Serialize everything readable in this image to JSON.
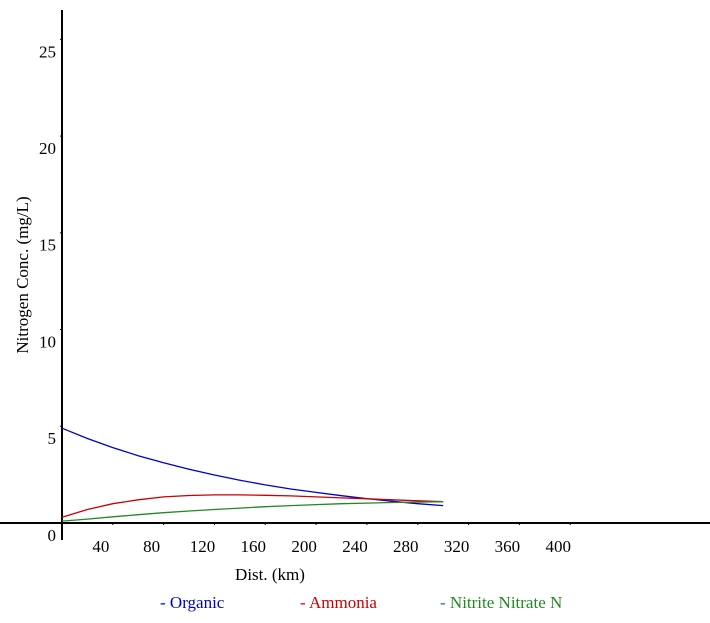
{
  "chart_data": {
    "type": "line",
    "x_label": "Dist. (km)",
    "y_label": "Nitrogen Conc. (mg/L)",
    "x": [
      0,
      20,
      40,
      60,
      80,
      100,
      120,
      140,
      160,
      180,
      200,
      220,
      240,
      260,
      280,
      300
    ],
    "series": [
      {
        "name": "- Organic",
        "color": "#0000cc",
        "values": [
          4.9,
          4.37,
          3.9,
          3.48,
          3.11,
          2.78,
          2.48,
          2.21,
          1.97,
          1.76,
          1.58,
          1.41,
          1.26,
          1.12,
          1.0,
          0.9
        ]
      },
      {
        "name": "- Ammonia",
        "color": "#cc0000",
        "values": [
          0.3,
          0.7,
          1.0,
          1.2,
          1.35,
          1.42,
          1.45,
          1.45,
          1.43,
          1.4,
          1.35,
          1.3,
          1.25,
          1.2,
          1.15,
          1.1
        ]
      },
      {
        "name": "- Nitrite Nitrate N",
        "color": "#228822",
        "values": [
          0.1,
          0.2,
          0.32,
          0.43,
          0.53,
          0.62,
          0.7,
          0.77,
          0.84,
          0.9,
          0.95,
          1.0,
          1.03,
          1.06,
          1.08,
          1.1
        ]
      }
    ],
    "xlim": [
      0,
      510
    ],
    "ylim": [
      0,
      26
    ],
    "xticks": [
      40,
      80,
      120,
      160,
      200,
      240,
      280,
      320,
      360,
      400
    ],
    "yticks": [
      0,
      5,
      10,
      15,
      20,
      25
    ],
    "grid": false
  }
}
